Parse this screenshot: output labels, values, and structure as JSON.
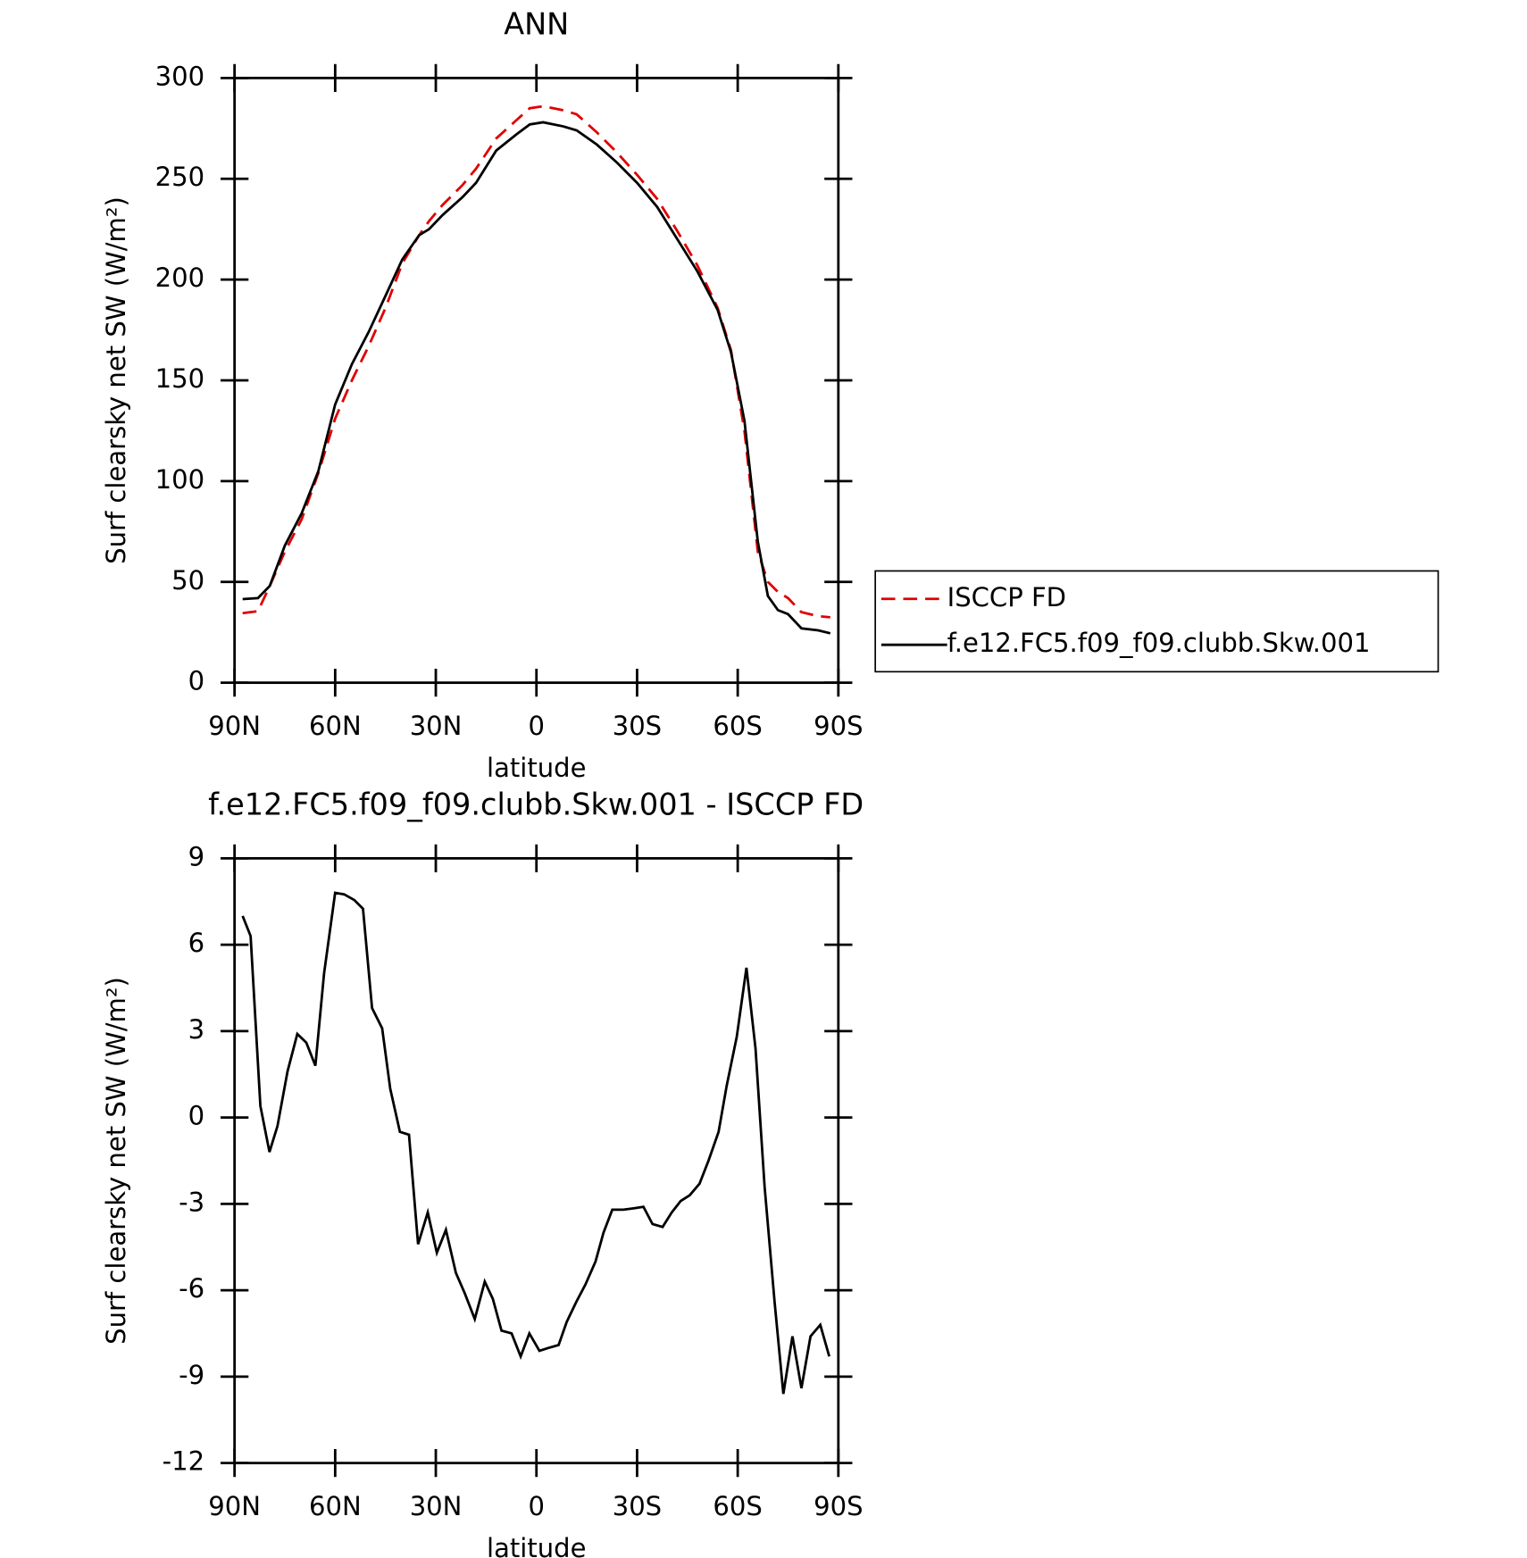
{
  "chart_data": [
    {
      "type": "line",
      "title": "ANN",
      "xlabel": "latitude",
      "ylabel": "Surf clearsky net SW (W/m²)",
      "xlim": [
        90,
        -90
      ],
      "xticks": [
        {
          "value": 90,
          "label": "90N"
        },
        {
          "value": 60,
          "label": "60N"
        },
        {
          "value": 30,
          "label": "30N"
        },
        0,
        {
          "value": -30,
          "label": "30S"
        },
        {
          "value": -60,
          "label": "60S"
        },
        {
          "value": -90,
          "label": "90S"
        }
      ],
      "ylim": [
        0,
        300
      ],
      "yticks": [
        0,
        50,
        100,
        150,
        200,
        250,
        300
      ],
      "legend": "outside right",
      "x": [
        87.6,
        83,
        79.5,
        75,
        70,
        65,
        60,
        55,
        50,
        45,
        40,
        35,
        32,
        28,
        22,
        18,
        12,
        6,
        2,
        -2,
        -8,
        -12,
        -18,
        -24,
        -30,
        -36,
        -42,
        -48,
        -54,
        -58,
        -62,
        -66,
        -69,
        -72,
        -75,
        -79,
        -84,
        -87.6
      ],
      "series": [
        {
          "name": "ISCCP FD",
          "color": "#e00000",
          "style": "dashed",
          "values": [
            34.5,
            35.5,
            48,
            65,
            81,
            104,
            131,
            150,
            167,
            186,
            208,
            222,
            229,
            237,
            247,
            255,
            270,
            279,
            285,
            286,
            284,
            282,
            273,
            263,
            252,
            240,
            224,
            207,
            186,
            165,
            125,
            65,
            50,
            45,
            42,
            35,
            33,
            32.5
          ]
        },
        {
          "name": "f.e12.FC5.f09_f09.clubb.Skw.001",
          "color": "#000000",
          "style": "solid",
          "values": [
            41.5,
            42,
            48,
            68,
            84,
            105,
            138,
            158,
            174,
            192,
            210,
            222,
            225,
            232,
            241,
            248,
            264,
            272,
            277,
            278,
            276,
            274,
            267,
            258,
            248,
            236,
            220,
            204,
            185,
            164,
            130,
            70,
            43,
            36,
            34,
            27,
            26,
            24.5
          ]
        }
      ]
    },
    {
      "type": "line",
      "title": "f.e12.FC5.f09_f09.clubb.Skw.001 - ISCCP FD",
      "xlabel": "latitude",
      "ylabel": "Surf clearsky net SW (W/m²)",
      "xlim": [
        90,
        -90
      ],
      "xticks": [
        {
          "value": 90,
          "label": "90N"
        },
        {
          "value": 60,
          "label": "60N"
        },
        {
          "value": 30,
          "label": "30N"
        },
        0,
        {
          "value": -30,
          "label": "30S"
        },
        {
          "value": -60,
          "label": "60S"
        },
        {
          "value": -90,
          "label": "90S"
        }
      ],
      "ylim": [
        -12,
        9
      ],
      "yticks": [
        -12,
        -9,
        -6,
        -3,
        0,
        3,
        6,
        9
      ],
      "x": [
        87.6,
        85.2,
        82.3,
        79.6,
        77.2,
        74.2,
        71.3,
        68.6,
        65.9,
        63.3,
        60.0,
        57.3,
        54.3,
        51.7,
        49.0,
        46.0,
        43.6,
        40.7,
        38.0,
        35.3,
        32.4,
        29.7,
        27.0,
        24.0,
        21.4,
        18.4,
        15.4,
        13.0,
        10.4,
        7.4,
        4.7,
        2.1,
        -0.9,
        -3.6,
        -6.6,
        -9.0,
        -11.9,
        -14.6,
        -17.6,
        -20.0,
        -22.6,
        -25.9,
        -29.2,
        -31.9,
        -34.6,
        -37.6,
        -40.3,
        -43.0,
        -45.7,
        -48.6,
        -51.3,
        -54.3,
        -56.7,
        -59.7,
        -62.6,
        -65.3,
        -68.0,
        -71.0,
        -73.6,
        -76.3,
        -79.0,
        -81.7,
        -84.6,
        -87.3
      ],
      "series": [
        {
          "color": "#000000",
          "style": "solid",
          "values": [
            7,
            6.3,
            0.4,
            -1.2,
            -0.3,
            1.6,
            2.9,
            2.6,
            1.8,
            5,
            7.8,
            7.75,
            7.55,
            7.25,
            3.8,
            3.1,
            1,
            -0.5,
            -0.6,
            -4.4,
            -3.3,
            -4.7,
            -3.9,
            -5.4,
            -6.1,
            -7,
            -5.7,
            -6.3,
            -7.4,
            -7.5,
            -8.3,
            -7.5,
            -8.1,
            -8,
            -7.9,
            -7.1,
            -6.4,
            -5.8,
            -5,
            -4,
            -3.2,
            -3.2,
            -3.15,
            -3.1,
            -3.7,
            -3.8,
            -3.3,
            -2.9,
            -2.7,
            -2.3,
            -1.5,
            -0.5,
            1.1,
            2.8,
            5.2,
            2.4,
            -2.4,
            -6.4,
            -9.6,
            -7.6,
            -9.4,
            -7.6,
            -7.2,
            -8.3
          ]
        }
      ]
    }
  ]
}
